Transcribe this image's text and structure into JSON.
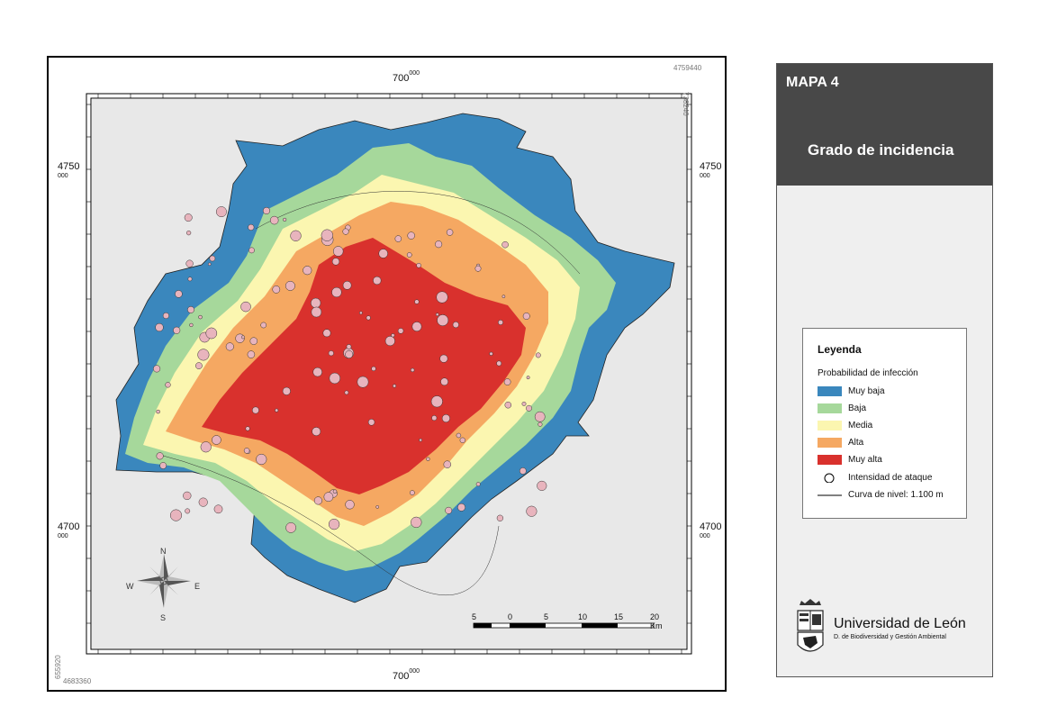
{
  "header": {
    "map_number": "MAPA 4",
    "title": "Grado de incidencia"
  },
  "coords": {
    "top_x": "700",
    "top_x_sup": "000",
    "bottom_x": "700",
    "bottom_x_sup": "000",
    "y_upper": "4750",
    "y_upper_sub": "000",
    "y_lower": "4700",
    "y_lower_sub": "000",
    "corner_top_right_y": "4759440",
    "corner_top_right_x": "738240",
    "corner_bottom_left_x": "655920",
    "corner_bottom_left_y": "4683360"
  },
  "compass": {
    "n": "N",
    "s": "S",
    "e": "E",
    "w": "W"
  },
  "scale_bar": {
    "labels": [
      "5",
      "0",
      "5",
      "10",
      "15",
      "20 Km"
    ]
  },
  "legend": {
    "title": "Leyenda",
    "subtitle": "Probabilidad de infección",
    "classes": [
      {
        "label": "Muy baja",
        "color": "#3a87bd"
      },
      {
        "label": "Baja",
        "color": "#a6d89b"
      },
      {
        "label": "Media",
        "color": "#fbf6b0"
      },
      {
        "label": "Alta",
        "color": "#f5a862"
      },
      {
        "label": "Muy alta",
        "color": "#d9312d"
      }
    ],
    "attack_label": "Intensidad de ataque",
    "contour_label": "Curva de nivel: 1.100 m"
  },
  "university": {
    "name": "Universidad de León",
    "department": "D. de Biodiversidad y Gestión Ambiental"
  }
}
